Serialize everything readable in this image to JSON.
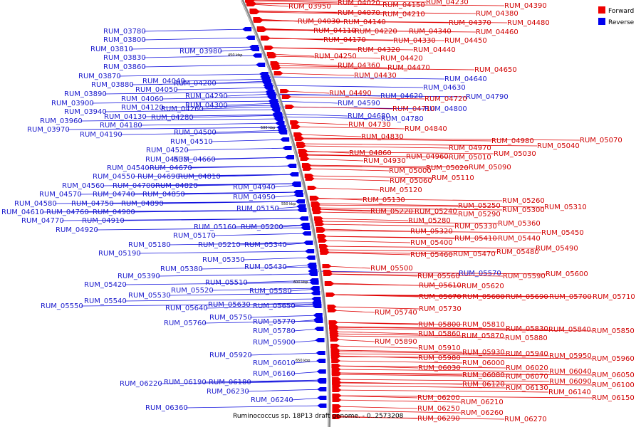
{
  "title": "Ruminococcus sp. 18P13 draft genome. - 0..2573208",
  "legend": [
    {
      "label": "Forward",
      "color": "#ee0000"
    },
    {
      "label": "Reverse",
      "color": "#0000ee"
    }
  ],
  "scale_marks": [
    "450 kbp",
    "500 kbp",
    "550 kbp",
    "600 kbp",
    "650 kbp"
  ],
  "reverse_genes": [
    "RUM_03780",
    "RUM_03800",
    "RUM_03810",
    "RUM_03830",
    "RUM_03860",
    "RUM_03870",
    "RUM_03880",
    "RUM_03890",
    "RUM_03900",
    "RUM_03940",
    "RUM_03960",
    "RUM_03970",
    "RUM_03980",
    "RUM_04040",
    "RUM_04050",
    "RUM_04060",
    "RUM_04120",
    "RUM_04130",
    "RUM_04180",
    "RUM_04190",
    "RUM_04200",
    "RUM_04260",
    "RUM_04280",
    "RUM_04290",
    "RUM_04300",
    "RUM_04500",
    "RUM_04510",
    "RUM_04520",
    "RUM_04530",
    "RUM_04540",
    "RUM_04550",
    "RUM_04560",
    "RUM_04570",
    "RUM_04580",
    "RUM_04610",
    "RUM_04660",
    "RUM_04670",
    "RUM_04690",
    "RUM_04700",
    "RUM_04740",
    "RUM_04750",
    "RUM_04760",
    "RUM_04770",
    "RUM_04810",
    "RUM_04820",
    "RUM_04850",
    "RUM_04890",
    "RUM_04900",
    "RUM_04910",
    "RUM_04920",
    "RUM_04940",
    "RUM_04950",
    "RUM_05150",
    "RUM_05160",
    "RUM_05170",
    "RUM_05180",
    "RUM_05190",
    "RUM_05200",
    "RUM_05210",
    "RUM_05340",
    "RUM_05350",
    "RUM_05380",
    "RUM_05390",
    "RUM_05420",
    "RUM_05430",
    "RUM_05510",
    "RUM_05520",
    "RUM_05530",
    "RUM_05540",
    "RUM_05550",
    "RUM_05580",
    "RUM_05630",
    "RUM_05640",
    "RUM_05650",
    "RUM_05750",
    "RUM_05760",
    "RUM_05770",
    "RUM_05780",
    "RUM_05900",
    "RUM_05920",
    "RUM_06010",
    "RUM_06160",
    "RUM_06180",
    "RUM_06190",
    "RUM_06220",
    "RUM_06230",
    "RUM_06240",
    "RUM_06360",
    "RUM_04590",
    "RUM_04620",
    "RUM_04630",
    "RUM_04640",
    "RUM_04680",
    "RUM_04780",
    "RUM_04790",
    "RUM_04800",
    "RUM_05570"
  ],
  "forward_genes": [
    "RUM_03950",
    "RUM_04020",
    "RUM_04070",
    "RUM_04030",
    "RUM_04110",
    "RUM_04140",
    "RUM_04150",
    "RUM_04210",
    "RUM_04220",
    "RUM_04230",
    "RUM_04170",
    "RUM_04250",
    "RUM_04320",
    "RUM_04330",
    "RUM_04340",
    "RUM_04370",
    "RUM_04380",
    "RUM_04390",
    "RUM_04440",
    "RUM_04450",
    "RUM_04460",
    "RUM_04480",
    "RUM_04360",
    "RUM_04420",
    "RUM_04430",
    "RUM_04470",
    "RUM_04490",
    "RUM_04650",
    "RUM_04710",
    "RUM_04720",
    "RUM_04730",
    "RUM_04830",
    "RUM_04840",
    "RUM_04860",
    "RUM_04930",
    "RUM_04960",
    "RUM_04970",
    "RUM_04980",
    "RUM_05000",
    "RUM_05010",
    "RUM_05020",
    "RUM_05030",
    "RUM_05040",
    "RUM_05060",
    "RUM_05070",
    "RUM_05090",
    "RUM_05110",
    "RUM_05120",
    "RUM_05130",
    "RUM_05220",
    "RUM_05240",
    "RUM_05250",
    "RUM_05260",
    "RUM_05280",
    "RUM_05290",
    "RUM_05300",
    "RUM_05310",
    "RUM_05320",
    "RUM_05330",
    "RUM_05360",
    "RUM_05400",
    "RUM_05410",
    "RUM_05440",
    "RUM_05450",
    "RUM_05460",
    "RUM_05470",
    "RUM_05480",
    "RUM_05490",
    "RUM_05500",
    "RUM_05560",
    "RUM_05590",
    "RUM_05600",
    "RUM_05610",
    "RUM_05620",
    "RUM_05670",
    "RUM_05680",
    "RUM_05690",
    "RUM_05700",
    "RUM_05710",
    "RUM_05730",
    "RUM_05740",
    "RUM_05800",
    "RUM_05810",
    "RUM_05830",
    "RUM_05840",
    "RUM_05850",
    "RUM_05860",
    "RUM_05870",
    "RUM_05880",
    "RUM_05890",
    "RUM_05910",
    "RUM_05930",
    "RUM_05940",
    "RUM_05950",
    "RUM_05960",
    "RUM_05980",
    "RUM_06000",
    "RUM_06020",
    "RUM_06030",
    "RUM_06040",
    "RUM_06050",
    "RUM_06070",
    "RUM_06080",
    "RUM_06090",
    "RUM_06100",
    "RUM_06120",
    "RUM_06130",
    "RUM_06140",
    "RUM_06150",
    "RUM_06200",
    "RUM_06210",
    "RUM_06250",
    "RUM_06260",
    "RUM_06270",
    "RUM_06290"
  ]
}
